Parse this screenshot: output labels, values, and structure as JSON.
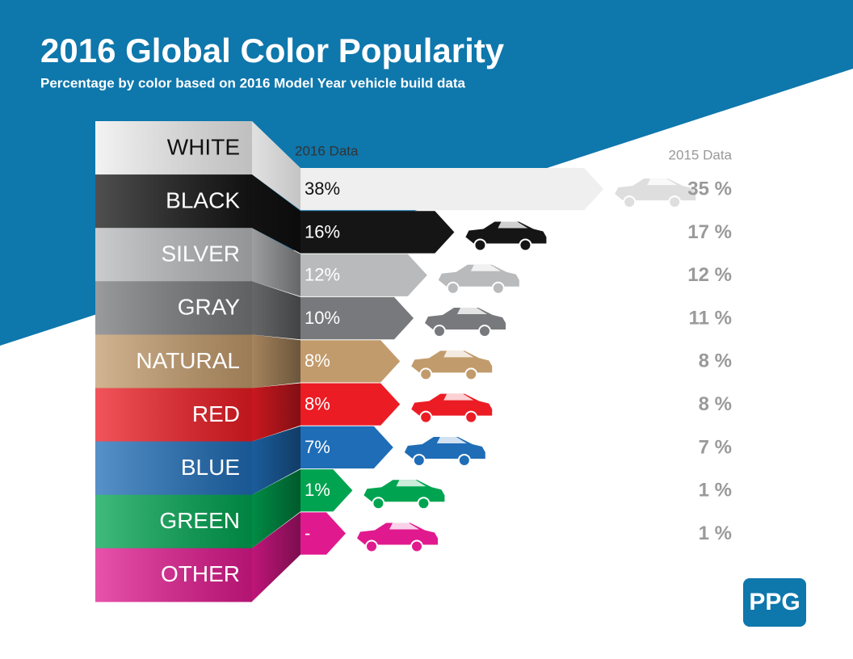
{
  "chart_data": {
    "type": "arrow-bar",
    "title": "2016 Global Color Popularity",
    "subtitle": "Percentage by color based on 2016 Model Year vehicle build data",
    "categories": [
      "WHITE",
      "BLACK",
      "SILVER",
      "GRAY",
      "NATURAL",
      "RED",
      "BLUE",
      "GREEN",
      "OTHER"
    ],
    "colors": [
      "#efeff0",
      "#151515",
      "#b9babc",
      "#78797c",
      "#c29b6c",
      "#ec1c24",
      "#1f6db7",
      "#00a450",
      "#e0198e"
    ],
    "series": [
      {
        "name": "2016 Data",
        "values": [
          38,
          16,
          12,
          10,
          8,
          8,
          7,
          1,
          null
        ],
        "value_labels": [
          "38%",
          "16%",
          "12%",
          "10%",
          "8%",
          "8%",
          "7%",
          "1%",
          "-"
        ]
      },
      {
        "name": "2015 Data",
        "values": [
          35,
          17,
          12,
          11,
          8,
          8,
          7,
          1,
          1
        ],
        "value_labels": [
          "35 %",
          "17 %",
          "12 %",
          "11 %",
          "8 %",
          "8 %",
          "7 %",
          "1 %",
          "1 %"
        ]
      }
    ],
    "logo": "PPG"
  }
}
